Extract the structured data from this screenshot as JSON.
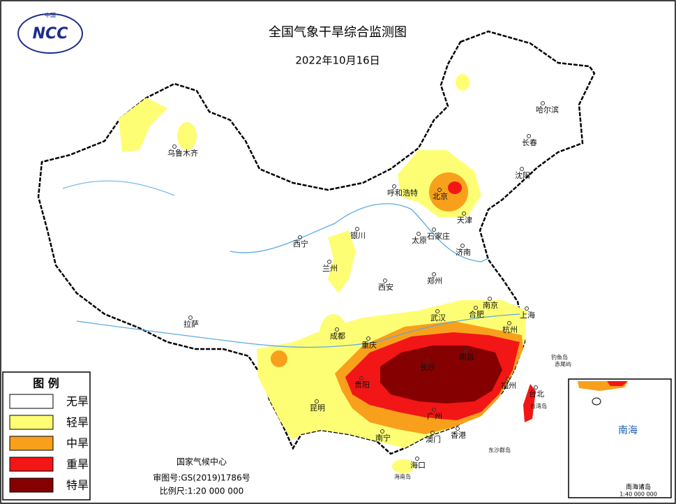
{
  "header": {
    "logo_top": "中国",
    "logo": "NCC",
    "title": "全国气象干旱综合监测图",
    "date": "2022年10月16日"
  },
  "legend": {
    "title": "图 例",
    "items": [
      {
        "label": "无旱",
        "color": "#ffffff"
      },
      {
        "label": "轻旱",
        "color": "#fefe74"
      },
      {
        "label": "中旱",
        "color": "#f8a01c"
      },
      {
        "label": "重旱",
        "color": "#f21616"
      },
      {
        "label": "特旱",
        "color": "#850000"
      }
    ]
  },
  "cities": [
    "哈尔滨",
    "长春",
    "沈阳",
    "呼和浩特",
    "北京",
    "天津",
    "石家庄",
    "太原",
    "济南",
    "银川",
    "西宁",
    "兰州",
    "郑州",
    "西安",
    "南京",
    "上海",
    "合肥",
    "武汉",
    "杭州",
    "成都",
    "重庆",
    "长沙",
    "南昌",
    "福州",
    "台北",
    "贵阳",
    "昆明",
    "广州",
    "南宁",
    "澳门",
    "香港",
    "海口",
    "拉萨",
    "乌鲁木齐"
  ],
  "places": [
    "台湾岛",
    "海南岛",
    "东沙群岛",
    "钓鱼岛",
    "赤尾屿"
  ],
  "footer": {
    "agency": "国家气候中心",
    "approval": "审图号:GS(2019)1786号",
    "scale": "比例尺:1:20 000 000"
  },
  "inset": {
    "sea": "南海",
    "islands": "南海诸岛",
    "scale": "1:40 000 000"
  }
}
